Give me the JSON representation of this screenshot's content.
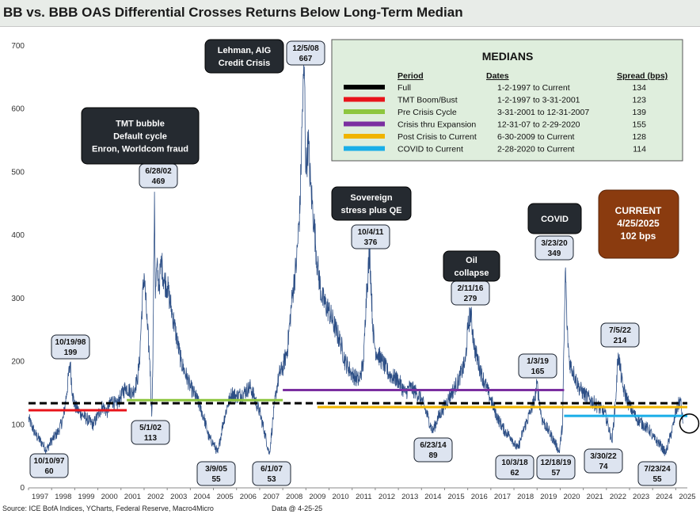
{
  "title": "BB vs. BBB OAS Differential Crosses Returns Below Long-Term Median",
  "footer": {
    "source": "Source: ICE BofA Indices, YCharts, Federal Reserve, Macro4Micro",
    "data_date": "Data @ 4-25-25"
  },
  "chart_data": {
    "type": "line",
    "title": "BB vs. BBB OAS Differential Crosses Returns Below Long-Term Median",
    "xlabel": "",
    "ylabel": "",
    "xlim": [
      1997.0,
      2025.5
    ],
    "ylim": [
      0,
      700
    ],
    "yticks": [
      0,
      100,
      200,
      300,
      400,
      500,
      600,
      700
    ],
    "xticks": [
      1997,
      1998,
      1999,
      2000,
      2001,
      2002,
      2003,
      2004,
      2005,
      2006,
      2007,
      2008,
      2009,
      2010,
      2011,
      2012,
      2013,
      2014,
      2015,
      2016,
      2017,
      2018,
      2019,
      2020,
      2021,
      2022,
      2023,
      2024,
      2025
    ],
    "grid": false,
    "line_color": "#2d4f86",
    "series": [
      {
        "x": [
          1997.0,
          1997.3,
          1997.6,
          1997.77,
          1998.0,
          1998.3,
          1998.5,
          1998.65,
          1998.8,
          1998.9,
          1999.0,
          1999.2,
          1999.5,
          1999.8,
          2000.0,
          2000.2,
          2000.4,
          2000.6,
          2000.8,
          2001.0,
          2001.2,
          2001.5,
          2001.7,
          2001.8,
          2001.9,
          2002.0,
          2002.15,
          2002.25,
          2002.33,
          2002.38,
          2002.45,
          2002.49,
          2002.55,
          2002.65,
          2002.75,
          2002.85,
          2003.0,
          2003.2,
          2003.4,
          2003.6,
          2003.8,
          2004.0,
          2004.3,
          2004.6,
          2004.8,
          2005.0,
          2005.19,
          2005.4,
          2005.6,
          2005.8,
          2006.0,
          2006.3,
          2006.6,
          2006.9,
          2007.0,
          2007.2,
          2007.42,
          2007.55,
          2007.7,
          2007.85,
          2008.0,
          2008.2,
          2008.4,
          2008.6,
          2008.75,
          2008.85,
          2008.93,
          2009.0,
          2009.1,
          2009.2,
          2009.35,
          2009.5,
          2009.7,
          2010.0,
          2010.3,
          2010.5,
          2010.7,
          2011.0,
          2011.3,
          2011.5,
          2011.6,
          2011.76,
          2011.9,
          2012.0,
          2012.3,
          2012.6,
          2013.0,
          2013.3,
          2013.5,
          2013.8,
          2014.0,
          2014.3,
          2014.48,
          2014.7,
          2015.0,
          2015.3,
          2015.6,
          2015.9,
          2016.0,
          2016.12,
          2016.3,
          2016.6,
          2016.9,
          2017.0,
          2017.3,
          2017.6,
          2017.9,
          2018.0,
          2018.17,
          2018.4,
          2018.7,
          2018.9,
          2019.0,
          2019.2,
          2019.5,
          2019.8,
          2019.96,
          2020.1,
          2020.23,
          2020.3,
          2020.4,
          2020.6,
          2020.8,
          2021.0,
          2021.3,
          2021.6,
          2021.9,
          2022.0,
          2022.24,
          2022.4,
          2022.51,
          2022.7,
          2023.0,
          2023.3,
          2023.6,
          2023.9,
          2024.0,
          2024.3,
          2024.56,
          2024.75,
          2024.9,
          2025.0,
          2025.2,
          2025.31
        ],
        "y": [
          110,
          85,
          70,
          60,
          75,
          90,
          110,
          150,
          199,
          150,
          130,
          120,
          110,
          100,
          115,
          130,
          120,
          140,
          130,
          145,
          160,
          150,
          170,
          200,
          280,
          340,
          250,
          200,
          113,
          200,
          469,
          300,
          350,
          320,
          360,
          330,
          320,
          280,
          240,
          200,
          180,
          160,
          140,
          110,
          80,
          70,
          55,
          100,
          130,
          150,
          145,
          150,
          160,
          130,
          120,
          90,
          53,
          100,
          150,
          180,
          190,
          220,
          300,
          360,
          450,
          600,
          667,
          500,
          550,
          480,
          420,
          350,
          300,
          280,
          250,
          230,
          200,
          180,
          170,
          200,
          300,
          376,
          250,
          220,
          200,
          180,
          170,
          150,
          160,
          150,
          140,
          110,
          89,
          110,
          130,
          150,
          170,
          200,
          250,
          279,
          220,
          180,
          150,
          140,
          110,
          90,
          80,
          70,
          62,
          90,
          120,
          140,
          165,
          110,
          90,
          70,
          57,
          100,
          349,
          250,
          200,
          180,
          160,
          150,
          140,
          130,
          120,
          110,
          74,
          140,
          214,
          160,
          130,
          110,
          100,
          90,
          80,
          70,
          55,
          80,
          100,
          120,
          140,
          102
        ]
      }
    ],
    "medians": [
      {
        "period": "Full",
        "dates": "1-2-1997 to Current",
        "spread": "134",
        "value": 134,
        "color": "#000000",
        "style": "dashed",
        "x_start": 1997.0,
        "x_end": 2025.5
      },
      {
        "period": "TMT Boom/Bust",
        "dates": "1-2-1997 to 3-31-2001",
        "spread": "123",
        "value": 123,
        "color": "#e8141b",
        "style": "solid",
        "x_start": 1997.0,
        "x_end": 2001.25
      },
      {
        "period": "Pre Crisis Cycle",
        "dates": "3-31-2001 to 12-31-2007",
        "spread": "139",
        "value": 139,
        "color": "#8dc63f",
        "style": "solid",
        "x_start": 2001.25,
        "x_end": 2008.0
      },
      {
        "period": "Crisis thru Expansion",
        "dates": "12-31-07 to 2-29-2020",
        "spread": "155",
        "value": 155,
        "color": "#7b2fa0",
        "style": "solid",
        "x_start": 2008.0,
        "x_end": 2020.17
      },
      {
        "period": "Post Crisis to Current",
        "dates": "6-30-2009 to Current",
        "spread": "128",
        "value": 128,
        "color": "#f0b400",
        "style": "solid",
        "x_start": 2009.5,
        "x_end": 2025.5
      },
      {
        "period": "COVID to Current",
        "dates": "2-28-2020 to Current",
        "spread": "114",
        "value": 114,
        "color": "#19aee8",
        "style": "solid",
        "x_start": 2020.17,
        "x_end": 2025.5
      }
    ],
    "legend": {
      "title": "MEDIANS",
      "col_period": "Period",
      "col_dates": "Dates",
      "col_spread": "Spread (bps)",
      "placement": "top-right"
    },
    "current_box": {
      "lines": [
        "CURRENT",
        "4/25/2025",
        "102 bps"
      ],
      "color": "#8a3b0f"
    },
    "annotations": [
      {
        "date": "10/10/97",
        "value": "60",
        "x": 1997.77,
        "y": 60,
        "position": "below"
      },
      {
        "date": "10/19/98",
        "value": "199",
        "x": 1998.8,
        "y": 199,
        "position": "above"
      },
      {
        "date": "5/1/02",
        "value": "113",
        "x": 2002.33,
        "y": 113,
        "position": "below"
      },
      {
        "date": "6/28/02",
        "value": "469",
        "x": 2002.49,
        "y": 469,
        "position": "above"
      },
      {
        "date": "3/9/05",
        "value": "55",
        "x": 2005.19,
        "y": 55,
        "position": "below"
      },
      {
        "date": "6/1/07",
        "value": "53",
        "x": 2007.42,
        "y": 53,
        "position": "below"
      },
      {
        "date": "12/5/08",
        "value": "667",
        "x": 2008.93,
        "y": 667,
        "position": "above"
      },
      {
        "date": "10/4/11",
        "value": "376",
        "x": 2011.76,
        "y": 376,
        "position": "above"
      },
      {
        "date": "6/23/14",
        "value": "89",
        "x": 2014.48,
        "y": 89,
        "position": "below"
      },
      {
        "date": "2/11/16",
        "value": "279",
        "x": 2016.12,
        "y": 279,
        "position": "above"
      },
      {
        "date": "10/3/18",
        "value": "62",
        "x": 2018.76,
        "y": 62,
        "position": "below"
      },
      {
        "date": "1/3/19",
        "value": "165",
        "x": 2019.0,
        "y": 165,
        "position": "above"
      },
      {
        "date": "12/18/19",
        "value": "57",
        "x": 2019.96,
        "y": 57,
        "position": "below"
      },
      {
        "date": "3/23/20",
        "value": "349",
        "x": 2020.23,
        "y": 349,
        "position": "above"
      },
      {
        "date": "3/30/22",
        "value": "74",
        "x": 2022.24,
        "y": 74,
        "position": "below"
      },
      {
        "date": "7/5/22",
        "value": "214",
        "x": 2022.51,
        "y": 214,
        "position": "above"
      },
      {
        "date": "7/23/24",
        "value": "55",
        "x": 2024.56,
        "y": 55,
        "position": "below"
      }
    ],
    "events": [
      {
        "lines": [
          "TMT bubble",
          "Default cycle",
          "Enron, Worldcom fraud"
        ]
      },
      {
        "lines": [
          "Lehman, AIG",
          "Credit Crisis"
        ]
      },
      {
        "lines": [
          "Sovereign",
          "stress plus QE"
        ]
      },
      {
        "lines": [
          "Oil",
          "collapse"
        ]
      },
      {
        "lines": [
          "COVID"
        ]
      }
    ],
    "current_value": 102,
    "current_x": 2025.31
  }
}
